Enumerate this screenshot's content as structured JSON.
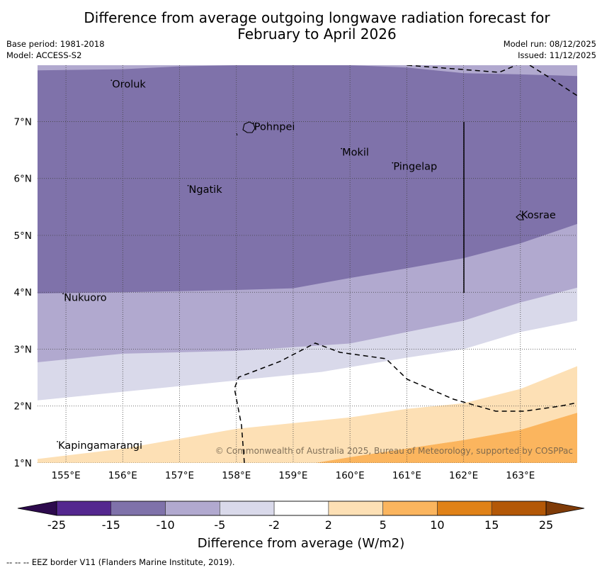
{
  "title": {
    "line1": "Difference from average outgoing longwave radiation forecast for",
    "line2": "February to April 2026"
  },
  "meta_left": {
    "base_period": "Base period: 1981-2018",
    "model": "Model: ACCESS-S2"
  },
  "meta_right": {
    "model_run": "Model run: 08/12/2025",
    "issued": "Issued: 11/12/2025"
  },
  "map": {
    "lon_range": [
      154.5,
      164.0
    ],
    "lat_range": [
      1.0,
      7.99
    ],
    "lon_ticks": [
      {
        "value": 155,
        "label": "155°E"
      },
      {
        "value": 156,
        "label": "156°E"
      },
      {
        "value": 157,
        "label": "157°E"
      },
      {
        "value": 158,
        "label": "158°E"
      },
      {
        "value": 159,
        "label": "159°E"
      },
      {
        "value": 160,
        "label": "160°E"
      },
      {
        "value": 161,
        "label": "161°E"
      },
      {
        "value": 162,
        "label": "162°E"
      },
      {
        "value": 163,
        "label": "163°E"
      }
    ],
    "lat_ticks": [
      {
        "value": 1,
        "label": "1°N"
      },
      {
        "value": 2,
        "label": "2°N"
      },
      {
        "value": 3,
        "label": "3°N"
      },
      {
        "value": 4,
        "label": "4°N"
      },
      {
        "value": 5,
        "label": "5°N"
      },
      {
        "value": 6,
        "label": "6°N"
      },
      {
        "value": 7,
        "label": "7°N"
      }
    ],
    "places": [
      {
        "name": "Oroluk",
        "lon": 155.8,
        "lat": 7.6
      },
      {
        "name": "Pohnpei",
        "lon": 158.3,
        "lat": 6.85
      },
      {
        "name": "Mokil",
        "lon": 159.85,
        "lat": 6.4
      },
      {
        "name": "Pingelap",
        "lon": 160.75,
        "lat": 6.15
      },
      {
        "name": "Ngatik",
        "lon": 157.15,
        "lat": 5.75
      },
      {
        "name": "Kosrae",
        "lon": 163.0,
        "lat": 5.3
      },
      {
        "name": "Nukuoro",
        "lon": 154.95,
        "lat": 3.85
      },
      {
        "name": "Kapingamarangi",
        "lon": 154.85,
        "lat": 1.25
      }
    ],
    "copyright": "© Commonwealth of Australia 2025, Bureau of Meteorology, supported by COSPPac"
  },
  "chart_data": {
    "type": "heatmap",
    "title": "Difference from average outgoing longwave radiation forecast for February to April 2026",
    "xlabel": "Longitude",
    "ylabel": "Latitude",
    "xlim": [
      154.5,
      164.0
    ],
    "ylim": [
      1.0,
      7.99
    ],
    "bands": [
      {
        "range": "-15 to -10",
        "color": "#7f72aa",
        "lower_boundary": [
          [
            154.5,
            3.98
          ],
          [
            156,
            4.0
          ],
          [
            158,
            4.04
          ],
          [
            159,
            4.07
          ],
          [
            160,
            4.25
          ],
          [
            161,
            4.42
          ],
          [
            162,
            4.6
          ],
          [
            163,
            4.86
          ],
          [
            164,
            5.2
          ]
        ]
      },
      {
        "range": "-10 to -5",
        "color": "#b1a9cf",
        "lower_boundary": [
          [
            154.5,
            2.77
          ],
          [
            156,
            2.92
          ],
          [
            158,
            2.97
          ],
          [
            160,
            3.1
          ],
          [
            161,
            3.3
          ],
          [
            162,
            3.5
          ],
          [
            163,
            3.82
          ],
          [
            164,
            4.08
          ]
        ]
      },
      {
        "range": "-5 to -2",
        "color": "#d9d9ea",
        "lower_boundary": [
          [
            154.5,
            2.1
          ],
          [
            156,
            2.25
          ],
          [
            158,
            2.45
          ],
          [
            159.5,
            2.6
          ],
          [
            161,
            2.85
          ],
          [
            162,
            3.0
          ],
          [
            163,
            3.3
          ],
          [
            164,
            3.5
          ]
        ]
      },
      {
        "range": "-2 to 2",
        "color": "#ffffff",
        "lower_boundary": [
          [
            154.5,
            1.07
          ],
          [
            156,
            1.25
          ],
          [
            158,
            1.6
          ],
          [
            160,
            1.8
          ],
          [
            161,
            1.95
          ],
          [
            162,
            2.05
          ],
          [
            163,
            2.3
          ],
          [
            164,
            2.7
          ]
        ]
      },
      {
        "range": "2 to 5",
        "color": "#fde0b5",
        "lower_boundary": [
          [
            159.4,
            1.0
          ],
          [
            160,
            1.1
          ],
          [
            161,
            1.25
          ],
          [
            162,
            1.4
          ],
          [
            163,
            1.58
          ],
          [
            164,
            1.88
          ]
        ]
      },
      {
        "range": "5 to 10",
        "color": "#fbb55e",
        "lower_boundary": [
          [
            164,
            1.0
          ]
        ]
      }
    ],
    "top_band": {
      "range": "-10 to -5",
      "color": "#b1a9cf",
      "upper_edge_of_-15_band": [
        [
          154.5,
          7.9
        ],
        [
          156,
          7.92
        ],
        [
          157,
          7.97
        ],
        [
          158,
          7.99
        ],
        [
          159,
          7.99
        ],
        [
          160,
          7.99
        ],
        [
          161,
          7.95
        ],
        [
          162,
          7.85
        ],
        [
          163,
          7.83
        ],
        [
          164,
          7.8
        ]
      ]
    },
    "colorbar": {
      "label": "Difference from average (W/m2)",
      "boundaries": [
        -25,
        -15,
        -10,
        -5,
        -2,
        2,
        5,
        10,
        15,
        25
      ],
      "tick_labels": [
        "-25",
        "-15",
        "-10",
        "-5",
        "-2",
        "2",
        "5",
        "10",
        "15",
        "25"
      ],
      "colors": [
        "#54278f",
        "#7f72aa",
        "#b1a9cf",
        "#d9d9ea",
        "#ffffff",
        "#fde0b5",
        "#fbb55e",
        "#e08218",
        "#b35807"
      ],
      "extend_min_color": "#2d0a4d",
      "extend_max_color": "#7f3b08"
    }
  },
  "footnote": "--  --  -- EEZ border V11 (Flanders Marine Institute, 2019)."
}
